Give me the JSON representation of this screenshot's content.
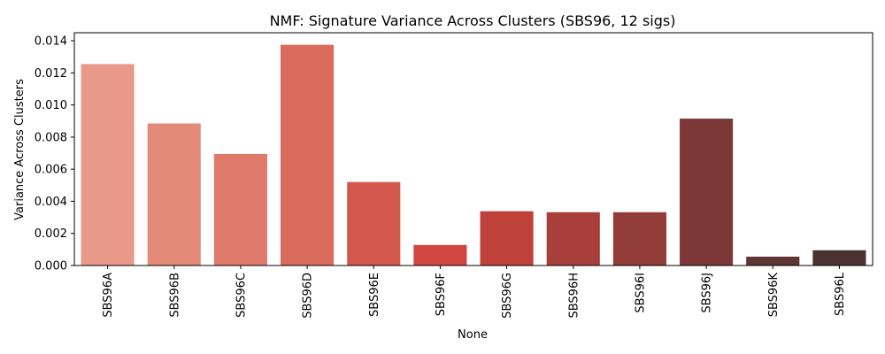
{
  "chart_data": {
    "type": "bar",
    "title": "NMF: Signature Variance Across Clusters (SBS96, 12 sigs)",
    "xlabel": "None",
    "ylabel": "Variance Across Clusters",
    "ylim": [
      0,
      0.0145
    ],
    "yticks": [
      "0.000",
      "0.002",
      "0.004",
      "0.006",
      "0.008",
      "0.010",
      "0.012",
      "0.014"
    ],
    "categories": [
      "SBS96A",
      "SBS96B",
      "SBS96C",
      "SBS96D",
      "SBS96E",
      "SBS96F",
      "SBS96G",
      "SBS96H",
      "SBS96I",
      "SBS96J",
      "SBS96K",
      "SBS96L"
    ],
    "values": [
      0.01255,
      0.00885,
      0.00695,
      0.01375,
      0.0052,
      0.00128,
      0.00338,
      0.00332,
      0.00332,
      0.00915,
      0.00055,
      0.00095
    ],
    "colors": [
      "#e8998a",
      "#e48a79",
      "#df7a6b",
      "#da6b5d",
      "#d3574d",
      "#cf4740",
      "#c0413a",
      "#a83f3a",
      "#923d38",
      "#7c3836",
      "#5e3533",
      "#4a3230"
    ],
    "grid": false,
    "legend": "none"
  }
}
